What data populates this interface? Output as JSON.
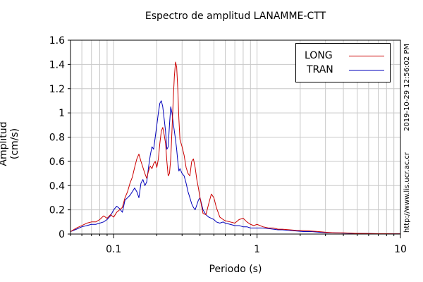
{
  "side_text": {
    "timestamp": "2019-10-29 12:56:02 PM",
    "url": "http://www.lis.ucr.ac.cr"
  },
  "chart_data": {
    "type": "line",
    "title": "Espectro de amplitud LANAMME-CTT",
    "xlabel": "Periodo (s)",
    "ylabel": "Amplitud (cm/s)",
    "xscale": "log",
    "xlim": [
      0.05,
      10
    ],
    "ylim": [
      0,
      1.6
    ],
    "yticks": [
      "0",
      "0.2",
      "0.4",
      "0.6",
      "0.8",
      "1",
      "1.2",
      "1.4",
      "1.6"
    ],
    "xticks": [
      "0.1",
      "1",
      "10"
    ],
    "grid": true,
    "legend_position": "top-right",
    "series": [
      {
        "name": "LONG",
        "color": "#cc0000",
        "x": [
          0.05,
          0.055,
          0.06,
          0.065,
          0.07,
          0.075,
          0.08,
          0.085,
          0.09,
          0.095,
          0.1,
          0.105,
          0.11,
          0.115,
          0.12,
          0.125,
          0.13,
          0.135,
          0.14,
          0.145,
          0.15,
          0.155,
          0.16,
          0.165,
          0.17,
          0.175,
          0.18,
          0.185,
          0.19,
          0.195,
          0.2,
          0.205,
          0.21,
          0.215,
          0.22,
          0.225,
          0.23,
          0.235,
          0.24,
          0.245,
          0.25,
          0.255,
          0.26,
          0.265,
          0.27,
          0.275,
          0.28,
          0.285,
          0.29,
          0.3,
          0.31,
          0.32,
          0.33,
          0.34,
          0.35,
          0.36,
          0.37,
          0.38,
          0.39,
          0.4,
          0.42,
          0.44,
          0.46,
          0.48,
          0.5,
          0.52,
          0.55,
          0.58,
          0.6,
          0.65,
          0.7,
          0.75,
          0.8,
          0.85,
          0.9,
          0.95,
          1.0,
          1.1,
          1.2,
          1.3,
          1.4,
          1.5,
          1.7,
          1.9,
          2.1,
          2.4,
          2.7,
          3.0,
          3.5,
          4.0,
          5.0,
          6.0,
          7.0,
          8.0,
          9.0,
          10.0
        ],
        "y": [
          0.02,
          0.05,
          0.07,
          0.09,
          0.1,
          0.1,
          0.12,
          0.15,
          0.13,
          0.16,
          0.14,
          0.18,
          0.2,
          0.22,
          0.3,
          0.35,
          0.42,
          0.47,
          0.55,
          0.62,
          0.66,
          0.6,
          0.55,
          0.5,
          0.46,
          0.52,
          0.56,
          0.54,
          0.58,
          0.6,
          0.55,
          0.62,
          0.75,
          0.85,
          0.88,
          0.82,
          0.75,
          0.6,
          0.48,
          0.5,
          0.62,
          0.85,
          1.1,
          1.3,
          1.42,
          1.38,
          1.2,
          0.95,
          0.78,
          0.72,
          0.65,
          0.55,
          0.5,
          0.48,
          0.6,
          0.62,
          0.55,
          0.45,
          0.38,
          0.3,
          0.17,
          0.16,
          0.25,
          0.33,
          0.3,
          0.22,
          0.14,
          0.12,
          0.11,
          0.1,
          0.09,
          0.12,
          0.13,
          0.1,
          0.08,
          0.07,
          0.08,
          0.06,
          0.05,
          0.05,
          0.04,
          0.04,
          0.035,
          0.03,
          0.03,
          0.025,
          0.02,
          0.015,
          0.01,
          0.01,
          0.005,
          0.004,
          0.003,
          0.003,
          0.002,
          0.002
        ]
      },
      {
        "name": "TRAN",
        "color": "#0000bb",
        "x": [
          0.05,
          0.055,
          0.06,
          0.065,
          0.07,
          0.075,
          0.08,
          0.085,
          0.09,
          0.095,
          0.1,
          0.105,
          0.11,
          0.115,
          0.12,
          0.125,
          0.13,
          0.135,
          0.14,
          0.145,
          0.15,
          0.155,
          0.16,
          0.165,
          0.17,
          0.175,
          0.18,
          0.185,
          0.19,
          0.195,
          0.2,
          0.205,
          0.21,
          0.215,
          0.22,
          0.225,
          0.23,
          0.235,
          0.24,
          0.245,
          0.25,
          0.255,
          0.26,
          0.265,
          0.27,
          0.275,
          0.28,
          0.285,
          0.29,
          0.3,
          0.31,
          0.32,
          0.33,
          0.34,
          0.35,
          0.36,
          0.37,
          0.38,
          0.39,
          0.4,
          0.42,
          0.44,
          0.46,
          0.48,
          0.5,
          0.52,
          0.55,
          0.58,
          0.6,
          0.65,
          0.7,
          0.75,
          0.8,
          0.85,
          0.9,
          0.95,
          1.0,
          1.1,
          1.2,
          1.3,
          1.4,
          1.5,
          1.7,
          1.9,
          2.1,
          2.4,
          2.7,
          3.0,
          3.5,
          4.0,
          5.0,
          6.0,
          7.0,
          8.0,
          9.0,
          10.0
        ],
        "y": [
          0.02,
          0.04,
          0.06,
          0.07,
          0.08,
          0.08,
          0.09,
          0.1,
          0.12,
          0.15,
          0.2,
          0.23,
          0.21,
          0.18,
          0.28,
          0.3,
          0.32,
          0.35,
          0.38,
          0.35,
          0.3,
          0.42,
          0.45,
          0.4,
          0.43,
          0.55,
          0.65,
          0.72,
          0.7,
          0.8,
          0.9,
          1.0,
          1.08,
          1.1,
          1.05,
          0.95,
          0.85,
          0.7,
          0.72,
          0.9,
          1.05,
          1.0,
          0.92,
          0.85,
          0.78,
          0.7,
          0.6,
          0.52,
          0.54,
          0.5,
          0.48,
          0.42,
          0.35,
          0.3,
          0.25,
          0.22,
          0.2,
          0.24,
          0.28,
          0.3,
          0.2,
          0.16,
          0.14,
          0.13,
          0.12,
          0.1,
          0.09,
          0.1,
          0.09,
          0.08,
          0.07,
          0.07,
          0.06,
          0.06,
          0.05,
          0.05,
          0.05,
          0.05,
          0.045,
          0.04,
          0.035,
          0.035,
          0.03,
          0.025,
          0.02,
          0.02,
          0.015,
          0.012,
          0.01,
          0.008,
          0.005,
          0.004,
          0.003,
          0.003,
          0.002,
          0.002
        ]
      }
    ]
  }
}
